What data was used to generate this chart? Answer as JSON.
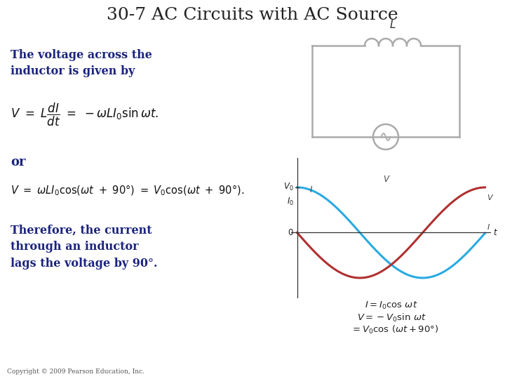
{
  "title": "30-7 AC Circuits with AC Source",
  "title_color": "#222222",
  "title_fontsize": 18,
  "bg_color": "#ffffff",
  "text_color": "#1a237e",
  "text1": "The voltage across the\ninductor is given by",
  "text_or": "or",
  "text2": "Therefore, the current\nthrough an inductor\nlags the voltage by 90°.",
  "I_color": "#29aae2",
  "V_color": "#b03030",
  "circuit_color": "#aaaaaa",
  "copyright": "Copyright © 2009 Pearson Education, Inc."
}
